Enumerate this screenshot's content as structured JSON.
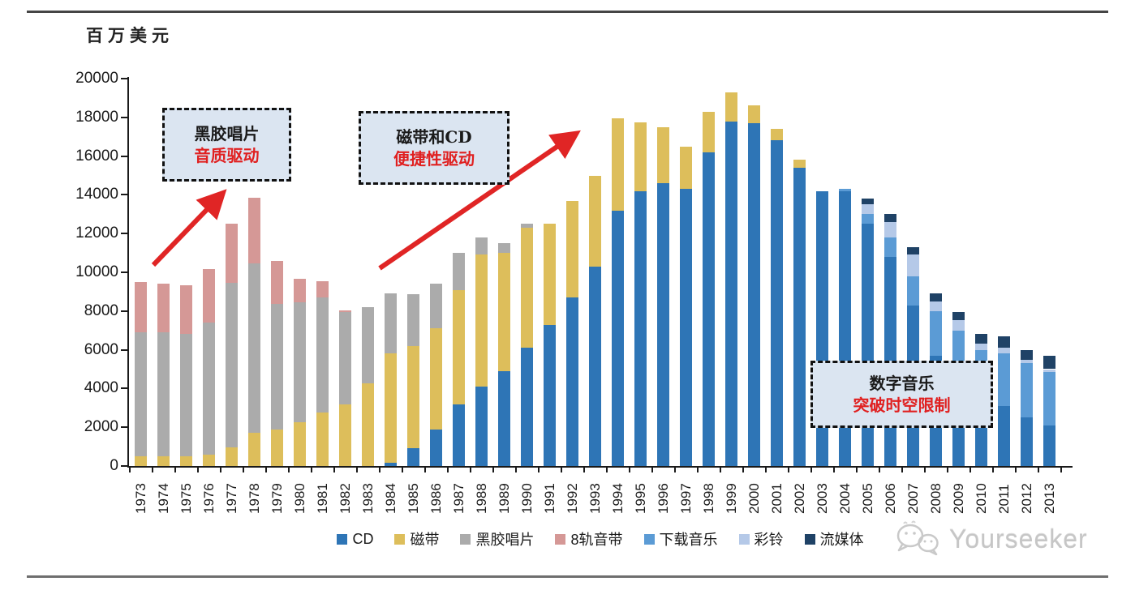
{
  "unit_label": "百万美元",
  "y_axis": {
    "ticks": [
      20000,
      18000,
      16000,
      14000,
      12000,
      10000,
      8000,
      6000,
      4000,
      2000,
      0
    ]
  },
  "chart_data": {
    "type": "bar",
    "stacked": true,
    "title": "",
    "ylabel": "百万美元",
    "ylim": [
      0,
      20000
    ],
    "ytick_step": 2000,
    "grid": false,
    "legend_position": "bottom",
    "categories": [
      1973,
      1974,
      1975,
      1976,
      1977,
      1978,
      1979,
      1980,
      1981,
      1982,
      1983,
      1984,
      1985,
      1986,
      1987,
      1988,
      1989,
      1990,
      1991,
      1992,
      1993,
      1994,
      1995,
      1996,
      1997,
      1998,
      1999,
      2000,
      2001,
      2002,
      2003,
      2004,
      2005,
      2006,
      2007,
      2008,
      2009,
      2010,
      2011,
      2012,
      2013
    ],
    "series": [
      {
        "key": "cd",
        "name": "CD",
        "color": "#2E75B6",
        "values": [
          0,
          0,
          0,
          0,
          0,
          0,
          0,
          0,
          0,
          0,
          0,
          150,
          900,
          1900,
          3200,
          4100,
          4900,
          6100,
          7300,
          8700,
          10300,
          13200,
          14200,
          14600,
          14300,
          16200,
          17800,
          17700,
          16800,
          15400,
          14200,
          14200,
          12500,
          10800,
          8300,
          5700,
          5400,
          3600,
          3100,
          2500,
          2100
        ]
      },
      {
        "key": "cassette",
        "name": "磁带",
        "color": "#DDBE5B",
        "values": [
          500,
          500,
          500,
          600,
          950,
          1700,
          1900,
          2250,
          2750,
          3200,
          4250,
          5650,
          5300,
          5200,
          5900,
          6800,
          6100,
          6200,
          5200,
          5000,
          4700,
          4750,
          3550,
          2900,
          2200,
          2100,
          1500,
          900,
          600,
          400,
          0,
          0,
          0,
          0,
          0,
          0,
          0,
          0,
          0,
          0,
          0
        ]
      },
      {
        "key": "vinyl",
        "name": "黑胶唱片",
        "color": "#ABABAB",
        "values": [
          6400,
          6400,
          6300,
          6800,
          8500,
          8750,
          6450,
          6200,
          5950,
          4750,
          3950,
          3100,
          2650,
          2300,
          1900,
          900,
          500,
          200,
          0,
          0,
          0,
          0,
          0,
          0,
          0,
          0,
          0,
          0,
          0,
          0,
          0,
          0,
          0,
          0,
          0,
          0,
          0,
          0,
          0,
          0,
          0
        ]
      },
      {
        "key": "eight-track",
        "name": "8轨音带",
        "color": "#D59896",
        "values": [
          2600,
          2500,
          2550,
          2750,
          3050,
          3400,
          2250,
          1200,
          850,
          100,
          0,
          0,
          0,
          0,
          0,
          0,
          0,
          0,
          0,
          0,
          0,
          0,
          0,
          0,
          0,
          0,
          0,
          0,
          0,
          0,
          0,
          0,
          0,
          0,
          0,
          0,
          0,
          0,
          0,
          0,
          0
        ]
      },
      {
        "key": "download",
        "name": "下载音乐",
        "color": "#5B9BD5",
        "values": [
          0,
          0,
          0,
          0,
          0,
          0,
          0,
          0,
          0,
          0,
          0,
          0,
          0,
          0,
          0,
          0,
          0,
          0,
          0,
          0,
          0,
          0,
          0,
          0,
          0,
          0,
          0,
          0,
          0,
          0,
          0,
          100,
          500,
          1000,
          1500,
          2300,
          1600,
          2400,
          2700,
          2800,
          2750
        ]
      },
      {
        "key": "ringtone",
        "name": "彩铃",
        "color": "#B5C9E8",
        "values": [
          0,
          0,
          0,
          0,
          0,
          0,
          0,
          0,
          0,
          0,
          0,
          0,
          0,
          0,
          0,
          0,
          0,
          0,
          0,
          0,
          0,
          0,
          0,
          0,
          0,
          0,
          0,
          0,
          0,
          0,
          0,
          0,
          500,
          800,
          1100,
          500,
          550,
          300,
          300,
          200,
          150
        ]
      },
      {
        "key": "streaming",
        "name": "流媒体",
        "color": "#1F4266",
        "values": [
          0,
          0,
          0,
          0,
          0,
          0,
          0,
          0,
          0,
          0,
          0,
          0,
          0,
          0,
          0,
          0,
          0,
          0,
          0,
          0,
          0,
          0,
          0,
          0,
          0,
          0,
          0,
          0,
          0,
          0,
          0,
          0,
          300,
          400,
          400,
          400,
          400,
          500,
          600,
          500,
          700
        ]
      }
    ]
  },
  "annotations": [
    {
      "line1": "黑胶唱片",
      "line2": "音质驱动"
    },
    {
      "line1": "磁带和CD",
      "line2": "便捷性驱动"
    },
    {
      "line1": "数字音乐",
      "line2": "突破时空限制"
    }
  ],
  "watermark": {
    "label": "Yourseeker",
    "icon": "wechat-icon"
  },
  "colors": {
    "arrow": "#E02525",
    "annotation_bg": "#DBE5F1",
    "annotation_accent": "#E02020",
    "axis": "#1A1A1A"
  }
}
